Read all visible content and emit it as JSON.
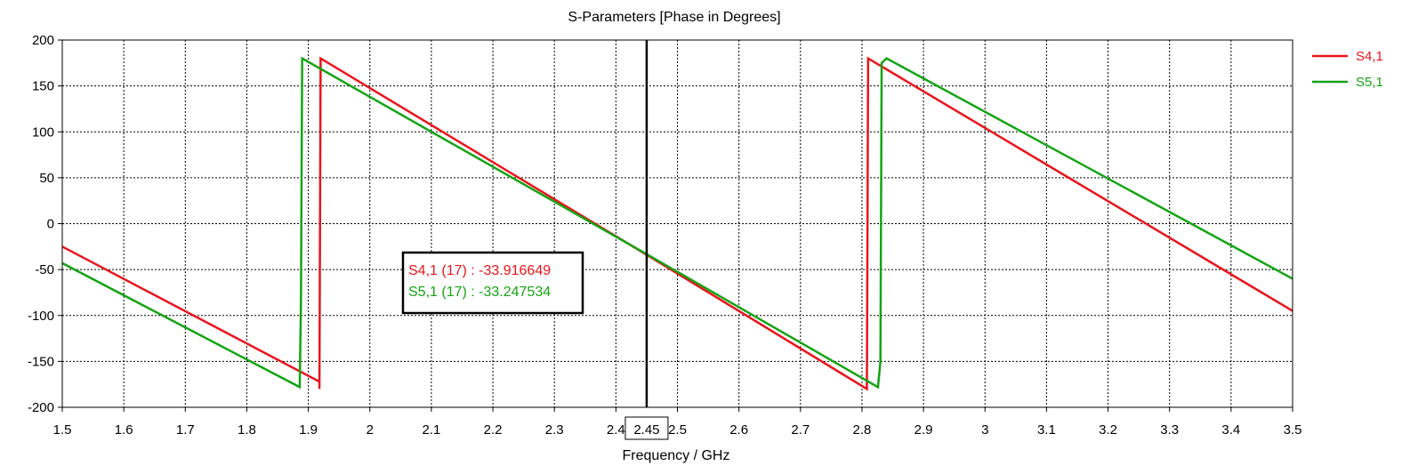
{
  "chart_data": {
    "type": "line",
    "title": "S-Parameters [Phase in Degrees]",
    "xlabel": "Frequency / GHz",
    "ylabel": "",
    "xlim": [
      1.5,
      3.5
    ],
    "ylim": [
      -200,
      200
    ],
    "grid": true,
    "legend_position": "top-right",
    "x_ticks": [
      1.5,
      1.6,
      1.7,
      1.8,
      1.9,
      2,
      2.1,
      2.2,
      2.3,
      2.4,
      2.5,
      2.6,
      2.7,
      2.8,
      2.9,
      3,
      3.1,
      3.2,
      3.3,
      3.4,
      3.5
    ],
    "x_tick_labels": [
      "1.5",
      "1.6",
      "1.7",
      "1.8",
      "1.9",
      "2",
      "2.1",
      "2.2",
      "2.3",
      "2.4",
      "2.5",
      "2.6",
      "2.7",
      "2.8",
      "2.9",
      "3",
      "3.1",
      "3.2",
      "3.3",
      "3.4",
      "3.5"
    ],
    "y_ticks": [
      200,
      150,
      100,
      50,
      0,
      -50,
      -100,
      -150,
      -200
    ],
    "y_tick_labels": [
      "200",
      "150",
      "100",
      "50",
      "0",
      "-50",
      "-100",
      "-150",
      "-200"
    ],
    "series": [
      {
        "name": "S4,1",
        "color": "#e8141b",
        "points": [
          [
            1.5,
            -25
          ],
          [
            1.918,
            -172
          ],
          [
            1.918,
            -180
          ],
          [
            1.92,
            180
          ],
          [
            2.45,
            -33.9
          ],
          [
            2.808,
            -180
          ],
          [
            2.81,
            180
          ],
          [
            3.5,
            -95
          ]
        ]
      },
      {
        "name": "S5,1",
        "color": "#14a314",
        "points": [
          [
            1.5,
            -43
          ],
          [
            1.886,
            -178
          ],
          [
            1.888,
            -85
          ],
          [
            1.89,
            180
          ],
          [
            2.45,
            -33.2
          ],
          [
            2.826,
            -178
          ],
          [
            2.83,
            -150
          ],
          [
            2.832,
            175
          ],
          [
            2.84,
            180
          ],
          [
            3.5,
            -60
          ]
        ]
      }
    ],
    "marker": {
      "x": 2.45,
      "label": "2.45",
      "readouts": [
        {
          "text": "S4,1 (17) : -33.916649",
          "color": "#e8141b"
        },
        {
          "text": "S5,1 (17) : -33.247534",
          "color": "#14a314"
        }
      ]
    }
  }
}
